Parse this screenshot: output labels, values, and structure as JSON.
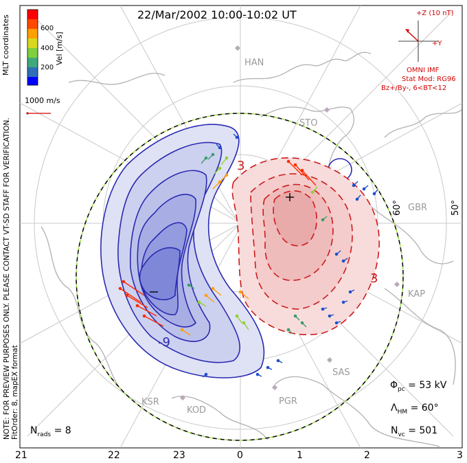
{
  "title": "22/Mar/2002 10:00-10:02 UT",
  "imf_box": {
    "z_label": "+Z (10 nT)",
    "y_label": "+Y",
    "line1": "OMNI IMF",
    "line2": "Stat Mod: RG96",
    "line3": "Bz+/By-, 6<BT<12"
  },
  "colorbar": {
    "label": "Vel [m/s]",
    "ticks": [
      "600",
      "400",
      "200"
    ],
    "colors": [
      "#0000ff",
      "#2f6fb8",
      "#3fa87c",
      "#7fcf3f",
      "#d8d820",
      "#ffa000",
      "#ff4a00",
      "#ff0000"
    ]
  },
  "vector_scale": "1000 m/s",
  "side_note_1": "MLT coordinates",
  "side_note_2": "NOTE: FOR PREVIEW PURPOSES ONLY. PLEASE CONTACT VT-SD STAFF FOR VERIFICATION.",
  "side_note_3": "FitOrder: 8, mapEX format",
  "stations": [
    "HAN",
    "STO",
    "GBR",
    "KAP",
    "SAS",
    "PGR",
    "KOD",
    "KSR"
  ],
  "lat_labels": [
    "60°",
    "50°"
  ],
  "contour_labels": [
    "-9",
    "3",
    "3"
  ],
  "extrema": {
    "min": "−",
    "max": "+"
  },
  "metrics": {
    "phi_pc": {
      "symbol": "Φ",
      "sub": "pc",
      "value": "= 53 kV"
    },
    "lambda_hm": {
      "symbol": "Λ",
      "sub": "HM",
      "value": "= 60°"
    },
    "n_vc": {
      "symbol": "N",
      "sub": "vc",
      "value": "= 501"
    },
    "n_rads": {
      "symbol": "N",
      "sub": "rads",
      "value": "= 8"
    }
  },
  "mlt_ticks": [
    "21",
    "22",
    "23",
    "0",
    "1",
    "2",
    "3"
  ]
}
